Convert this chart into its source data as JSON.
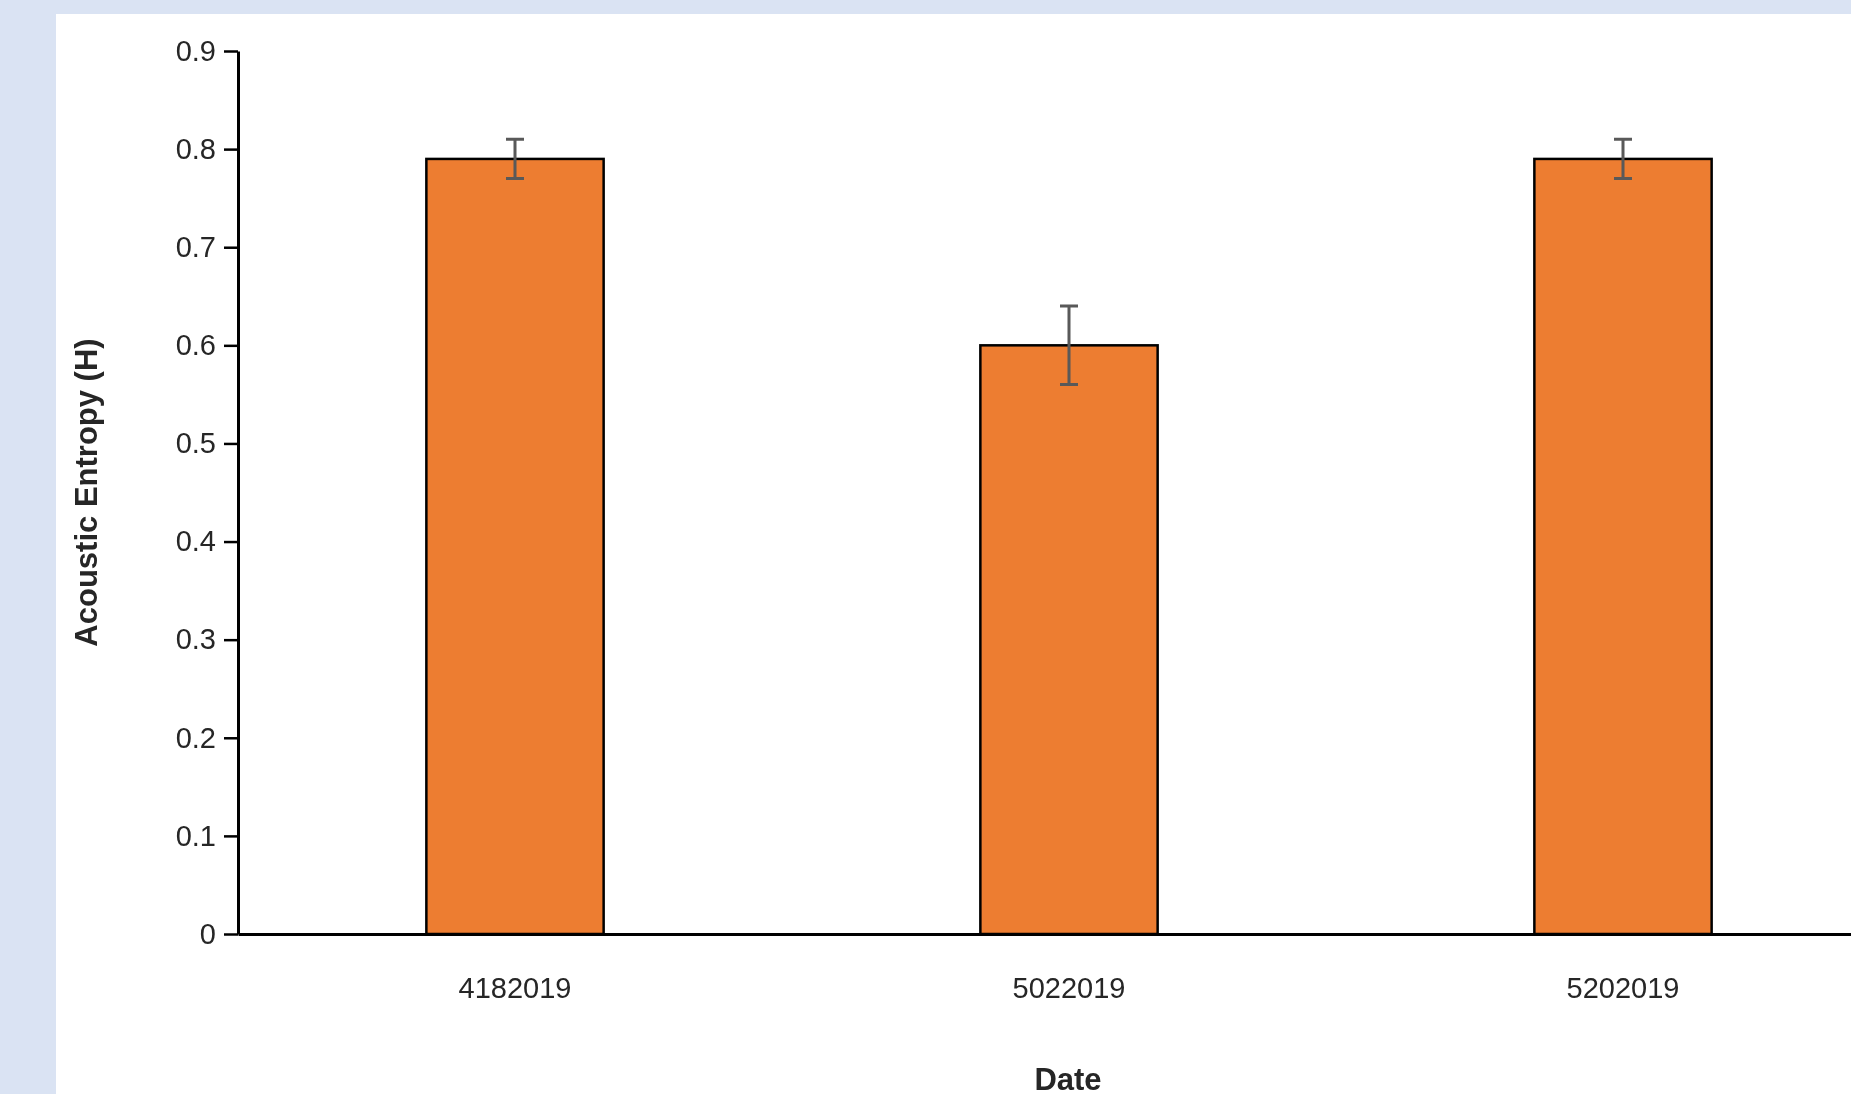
{
  "chart_data": {
    "type": "bar",
    "xlabel": "Date",
    "ylabel": "Acoustic Entropy (H)",
    "categories": [
      "4182019",
      "5022019",
      "5202019"
    ],
    "values": [
      0.79,
      0.6,
      0.79
    ],
    "color": "#ed7d31",
    "errors": [
      0.02,
      0.04,
      0.02
    ],
    "ylim": [
      0,
      0.9
    ],
    "yticks": [
      0,
      0.1,
      0.2,
      0.3,
      0.4,
      0.5,
      0.6,
      0.7,
      0.8,
      0.9
    ],
    "grid": false
  }
}
